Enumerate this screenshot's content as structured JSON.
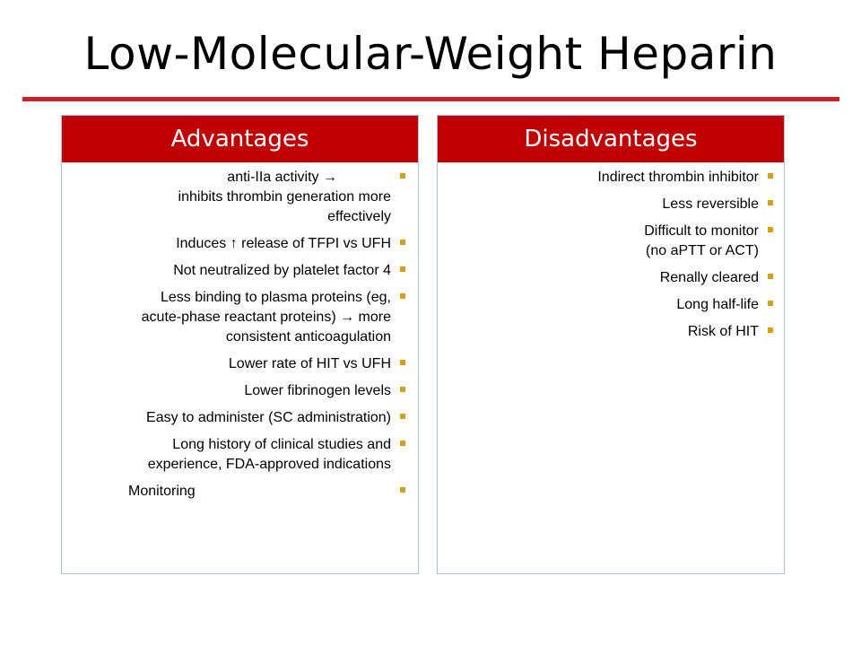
{
  "slide": {
    "title": "Low-Molecular-Weight Heparin"
  },
  "advantages": {
    "heading": "Advantages",
    "items": [
      {
        "line1": "anti-IIa activity →",
        "line2": "inhibits thrombin generation more",
        "line3": "effectively"
      },
      {
        "line1": "Induces ↑ release of TFPI vs UFH"
      },
      {
        "line1": "Not neutralized by platelet factor 4"
      },
      {
        "line1": "Less binding to plasma proteins (eg,",
        "line2": "acute-phase reactant proteins) → more",
        "line3": "consistent anticoagulation"
      },
      {
        "line1": "Lower rate of HIT vs UFH"
      },
      {
        "line1": "Lower fibrinogen levels"
      },
      {
        "line1": "Easy to administer (SC administration)"
      },
      {
        "line1": "Long history of clinical studies and",
        "line2": "experience, FDA-approved indications"
      },
      {
        "line1": "Monitoring"
      }
    ]
  },
  "disadvantages": {
    "heading": "Disadvantages",
    "items": [
      {
        "line1": "Indirect thrombin inhibitor"
      },
      {
        "line1": "Less reversible"
      },
      {
        "line1": "Difficult to monitor",
        "line2": "(no aPTT or ACT)"
      },
      {
        "line1": "Renally cleared"
      },
      {
        "line1": "Long half-life"
      },
      {
        "line1": "Risk of HIT"
      }
    ]
  },
  "colors": {
    "header_bg": "#c00000",
    "rule": "#c6242b",
    "bullet": "#d4a017",
    "panel_border": "#a9c4d6"
  }
}
